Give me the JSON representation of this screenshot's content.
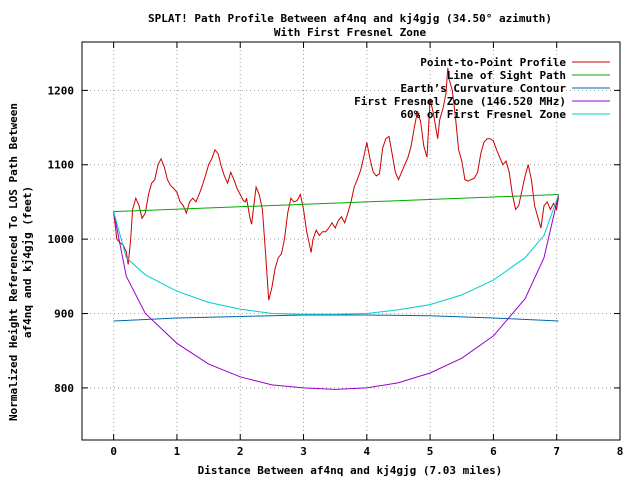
{
  "chart_data": {
    "type": "line",
    "title": "SPLAT! Path Profile Between af4nq and kj4gjg (34.50° azimuth)",
    "subtitle": "With First Fresnel Zone",
    "xlabel": "Distance Between af4nq and kj4gjg (7.03 miles)",
    "ylabel_line1": "Normalized Height Referenced To LOS Path Between",
    "ylabel_line2": "af4nq and kj4gjg (feet)",
    "xlim": [
      -0.5,
      8
    ],
    "ylim": [
      730,
      1265
    ],
    "xticks": [
      0,
      1,
      2,
      3,
      4,
      5,
      6,
      7,
      8
    ],
    "yticks": [
      800,
      900,
      1000,
      1100,
      1200
    ],
    "grid": true,
    "legend_position": "top-right",
    "series": [
      {
        "name": "Point-to-Point Profile",
        "color": "#cc0000",
        "points": [
          [
            0,
            1037
          ],
          [
            0.05,
            1000
          ],
          [
            0.1,
            995
          ],
          [
            0.15,
            992
          ],
          [
            0.2,
            983
          ],
          [
            0.23,
            966
          ],
          [
            0.27,
            1000
          ],
          [
            0.3,
            1040
          ],
          [
            0.35,
            1055
          ],
          [
            0.4,
            1045
          ],
          [
            0.45,
            1028
          ],
          [
            0.5,
            1035
          ],
          [
            0.55,
            1060
          ],
          [
            0.6,
            1075
          ],
          [
            0.65,
            1080
          ],
          [
            0.7,
            1100
          ],
          [
            0.75,
            1108
          ],
          [
            0.8,
            1097
          ],
          [
            0.85,
            1080
          ],
          [
            0.9,
            1072
          ],
          [
            0.95,
            1068
          ],
          [
            1.0,
            1063
          ],
          [
            1.05,
            1050
          ],
          [
            1.1,
            1045
          ],
          [
            1.15,
            1035
          ],
          [
            1.2,
            1050
          ],
          [
            1.25,
            1055
          ],
          [
            1.3,
            1050
          ],
          [
            1.35,
            1060
          ],
          [
            1.4,
            1072
          ],
          [
            1.45,
            1085
          ],
          [
            1.5,
            1100
          ],
          [
            1.55,
            1108
          ],
          [
            1.6,
            1120
          ],
          [
            1.65,
            1115
          ],
          [
            1.7,
            1098
          ],
          [
            1.75,
            1085
          ],
          [
            1.8,
            1075
          ],
          [
            1.85,
            1090
          ],
          [
            1.9,
            1080
          ],
          [
            1.95,
            1068
          ],
          [
            2.0,
            1060
          ],
          [
            2.05,
            1052
          ],
          [
            2.08,
            1050
          ],
          [
            2.1,
            1055
          ],
          [
            2.15,
            1030
          ],
          [
            2.18,
            1020
          ],
          [
            2.2,
            1035
          ],
          [
            2.25,
            1070
          ],
          [
            2.3,
            1060
          ],
          [
            2.35,
            1040
          ],
          [
            2.4,
            980
          ],
          [
            2.45,
            918
          ],
          [
            2.5,
            935
          ],
          [
            2.55,
            960
          ],
          [
            2.6,
            975
          ],
          [
            2.65,
            980
          ],
          [
            2.7,
            1000
          ],
          [
            2.75,
            1035
          ],
          [
            2.8,
            1055
          ],
          [
            2.85,
            1050
          ],
          [
            2.9,
            1052
          ],
          [
            2.95,
            1060
          ],
          [
            3.0,
            1040
          ],
          [
            3.05,
            1010
          ],
          [
            3.1,
            990
          ],
          [
            3.12,
            982
          ],
          [
            3.15,
            1000
          ],
          [
            3.2,
            1012
          ],
          [
            3.25,
            1005
          ],
          [
            3.3,
            1010
          ],
          [
            3.35,
            1010
          ],
          [
            3.4,
            1015
          ],
          [
            3.45,
            1022
          ],
          [
            3.5,
            1015
          ],
          [
            3.55,
            1025
          ],
          [
            3.6,
            1030
          ],
          [
            3.65,
            1022
          ],
          [
            3.7,
            1035
          ],
          [
            3.75,
            1050
          ],
          [
            3.8,
            1070
          ],
          [
            3.85,
            1080
          ],
          [
            3.9,
            1092
          ],
          [
            3.95,
            1110
          ],
          [
            4.0,
            1130
          ],
          [
            4.05,
            1108
          ],
          [
            4.1,
            1090
          ],
          [
            4.15,
            1085
          ],
          [
            4.2,
            1088
          ],
          [
            4.25,
            1122
          ],
          [
            4.3,
            1135
          ],
          [
            4.35,
            1138
          ],
          [
            4.4,
            1115
          ],
          [
            4.45,
            1090
          ],
          [
            4.5,
            1080
          ],
          [
            4.55,
            1090
          ],
          [
            4.6,
            1100
          ],
          [
            4.65,
            1110
          ],
          [
            4.7,
            1125
          ],
          [
            4.75,
            1150
          ],
          [
            4.8,
            1172
          ],
          [
            4.85,
            1158
          ],
          [
            4.9,
            1125
          ],
          [
            4.95,
            1110
          ],
          [
            5.0,
            1188
          ],
          [
            5.05,
            1170
          ],
          [
            5.1,
            1145
          ],
          [
            5.12,
            1135
          ],
          [
            5.15,
            1160
          ],
          [
            5.2,
            1175
          ],
          [
            5.25,
            1195
          ],
          [
            5.28,
            1230
          ],
          [
            5.3,
            1215
          ],
          [
            5.35,
            1200
          ],
          [
            5.4,
            1165
          ],
          [
            5.45,
            1120
          ],
          [
            5.5,
            1105
          ],
          [
            5.55,
            1080
          ],
          [
            5.6,
            1078
          ],
          [
            5.65,
            1080
          ],
          [
            5.7,
            1082
          ],
          [
            5.75,
            1090
          ],
          [
            5.8,
            1115
          ],
          [
            5.85,
            1130
          ],
          [
            5.9,
            1135
          ],
          [
            5.95,
            1135
          ],
          [
            6.0,
            1132
          ],
          [
            6.05,
            1120
          ],
          [
            6.1,
            1110
          ],
          [
            6.15,
            1100
          ],
          [
            6.2,
            1105
          ],
          [
            6.25,
            1090
          ],
          [
            6.3,
            1060
          ],
          [
            6.35,
            1040
          ],
          [
            6.4,
            1045
          ],
          [
            6.45,
            1065
          ],
          [
            6.5,
            1085
          ],
          [
            6.55,
            1100
          ],
          [
            6.6,
            1080
          ],
          [
            6.65,
            1045
          ],
          [
            6.7,
            1030
          ],
          [
            6.75,
            1015
          ],
          [
            6.8,
            1045
          ],
          [
            6.85,
            1050
          ],
          [
            6.9,
            1040
          ],
          [
            6.95,
            1048
          ],
          [
            7.0,
            1040
          ],
          [
            7.03,
            1058
          ]
        ]
      },
      {
        "name": "Line of Sight Path",
        "color": "#00aa00",
        "points": [
          [
            0,
            1037
          ],
          [
            7.03,
            1060
          ]
        ]
      },
      {
        "name": "Earth’s Curvature Contour",
        "color": "#0066aa",
        "points": [
          [
            0,
            890
          ],
          [
            1,
            894
          ],
          [
            2,
            896
          ],
          [
            3,
            898
          ],
          [
            3.5,
            898
          ],
          [
            4,
            898
          ],
          [
            5,
            897
          ],
          [
            6,
            894
          ],
          [
            7.03,
            890
          ]
        ]
      },
      {
        "name": "First Fresnel Zone (146.520 MHz)",
        "color": "#9900cc",
        "points": [
          [
            0,
            1037
          ],
          [
            0.2,
            950
          ],
          [
            0.5,
            900
          ],
          [
            1,
            860
          ],
          [
            1.5,
            832
          ],
          [
            2,
            815
          ],
          [
            2.5,
            804
          ],
          [
            3,
            800
          ],
          [
            3.5,
            798
          ],
          [
            4,
            800
          ],
          [
            4.5,
            807
          ],
          [
            5,
            820
          ],
          [
            5.5,
            840
          ],
          [
            6,
            870
          ],
          [
            6.5,
            920
          ],
          [
            6.8,
            975
          ],
          [
            7.03,
            1060
          ]
        ]
      },
      {
        "name": "60% of First Fresnel Zone",
        "color": "#00cccc",
        "points": [
          [
            0,
            1037
          ],
          [
            0.2,
            975
          ],
          [
            0.5,
            952
          ],
          [
            1,
            930
          ],
          [
            1.5,
            915
          ],
          [
            2,
            906
          ],
          [
            2.5,
            900
          ],
          [
            3,
            899
          ],
          [
            3.5,
            899
          ],
          [
            4,
            900
          ],
          [
            4.5,
            905
          ],
          [
            5,
            912
          ],
          [
            5.5,
            925
          ],
          [
            6,
            945
          ],
          [
            6.5,
            975
          ],
          [
            6.8,
            1005
          ],
          [
            7.03,
            1060
          ]
        ]
      }
    ]
  }
}
